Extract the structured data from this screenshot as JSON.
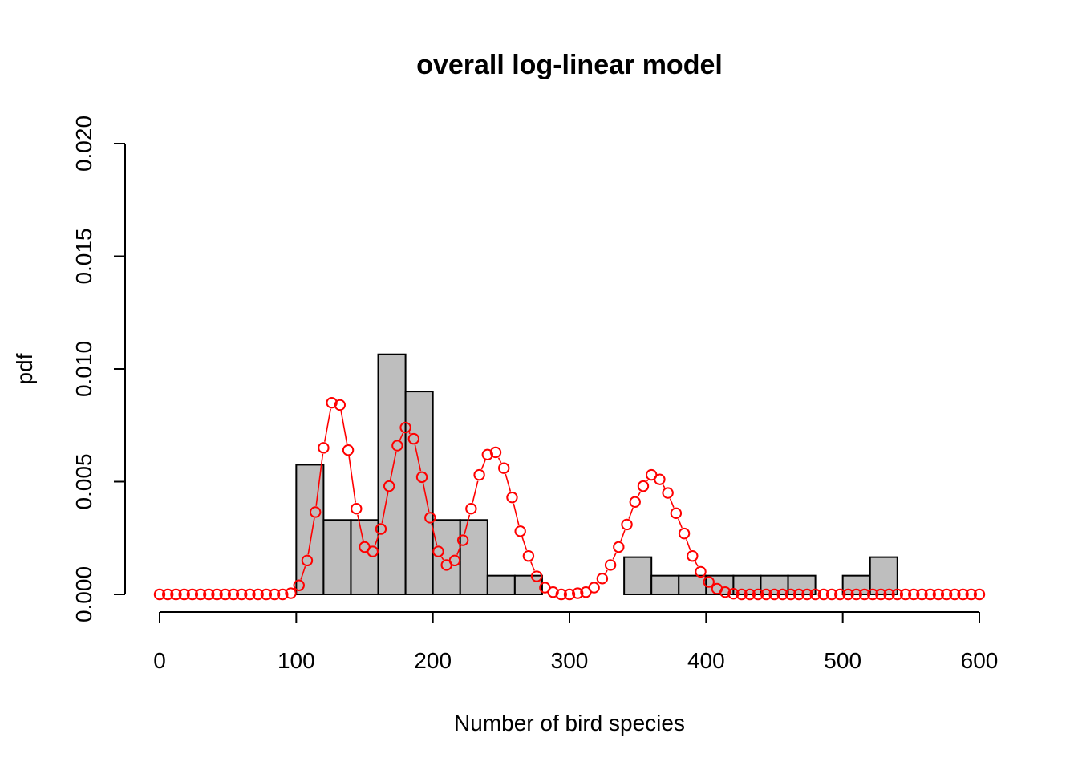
{
  "chart_data": {
    "type": "bar",
    "title": "overall log-linear model",
    "xlabel": "Number of bird species",
    "ylabel": "pdf",
    "xlim": [
      0,
      600
    ],
    "ylim": [
      0,
      0.02
    ],
    "x_ticks": [
      "0",
      "100",
      "200",
      "300",
      "400",
      "500",
      "600"
    ],
    "y_ticks": [
      "0.000",
      "0.005",
      "0.010",
      "0.015",
      "0.020"
    ],
    "grid": false,
    "histogram": {
      "bin_width": 20,
      "bin_starts": [
        100,
        120,
        140,
        160,
        180,
        200,
        220,
        240,
        260,
        340,
        360,
        380,
        400,
        420,
        440,
        460,
        500,
        520
      ],
      "density": [
        0.00575,
        0.0033,
        0.0033,
        0.01065,
        0.009,
        0.0033,
        0.0033,
        0.00083,
        0.00083,
        0.00165,
        0.00083,
        0.00083,
        0.00083,
        0.00083,
        0.00083,
        0.00083,
        0.00083,
        0.00165
      ],
      "fill": "#bebebe"
    },
    "series": [
      {
        "type": "points",
        "color": "#ff0000",
        "x": [
          0,
          6,
          12,
          18,
          24,
          30,
          36,
          42,
          48,
          54,
          60,
          66,
          72,
          78,
          84,
          90,
          96,
          102,
          108,
          114,
          120,
          126,
          132,
          138,
          144,
          150,
          156,
          162,
          168,
          174,
          180,
          186,
          192,
          198,
          204,
          210,
          216,
          222,
          228,
          234,
          240,
          246,
          252,
          258,
          264,
          270,
          276,
          282,
          288,
          294,
          300,
          306,
          312,
          318,
          324,
          330,
          336,
          342,
          348,
          354,
          360,
          366,
          372,
          378,
          384,
          390,
          396,
          402,
          408,
          414,
          420,
          426,
          432,
          438,
          444,
          450,
          456,
          462,
          468,
          474,
          480,
          486,
          492,
          498,
          504,
          510,
          516,
          522,
          528,
          534,
          540,
          546,
          552,
          558,
          564,
          570,
          576,
          582,
          588,
          594,
          600
        ],
        "y": [
          0,
          0,
          0,
          0,
          0,
          0,
          0,
          0,
          0,
          0,
          0,
          0,
          0,
          0,
          0,
          0,
          5e-05,
          0.0004,
          0.0015,
          0.00365,
          0.0065,
          0.0085,
          0.0084,
          0.0064,
          0.0038,
          0.0021,
          0.0019,
          0.0029,
          0.0048,
          0.0066,
          0.0074,
          0.0069,
          0.0052,
          0.0034,
          0.0019,
          0.0013,
          0.0015,
          0.0024,
          0.0038,
          0.0053,
          0.0062,
          0.0063,
          0.0056,
          0.0043,
          0.0028,
          0.0017,
          0.0008,
          0.0003,
          0.0001,
          0,
          0,
          5e-05,
          0.0001,
          0.0003,
          0.0007,
          0.0013,
          0.0021,
          0.0031,
          0.0041,
          0.0048,
          0.0053,
          0.0051,
          0.0045,
          0.0036,
          0.0027,
          0.0017,
          0.001,
          0.00055,
          0.00025,
          0.0001,
          3e-05,
          0,
          0,
          0,
          0,
          0,
          0,
          0,
          0,
          0,
          0,
          0,
          0,
          0,
          0,
          0,
          0,
          0,
          0,
          0,
          0,
          0,
          0,
          0,
          0,
          0,
          0,
          0,
          0,
          0,
          0
        ]
      }
    ]
  }
}
